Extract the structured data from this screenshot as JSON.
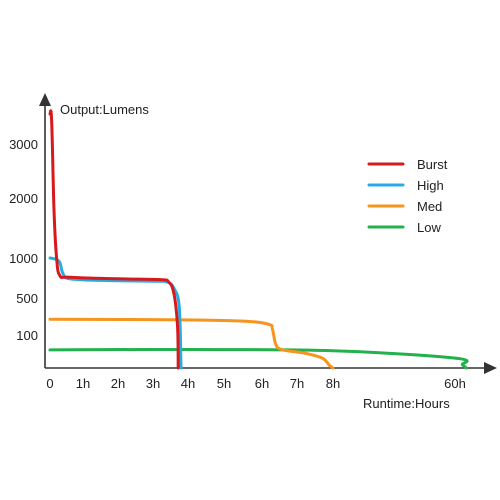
{
  "chart_data": {
    "type": "line",
    "xlabel": "Runtime:Hours",
    "ylabel": "Output:Lumens",
    "x_ticks": [
      {
        "label": "0",
        "value": 0
      },
      {
        "label": "1h",
        "value": 1
      },
      {
        "label": "2h",
        "value": 2
      },
      {
        "label": "3h",
        "value": 3
      },
      {
        "label": "4h",
        "value": 4
      },
      {
        "label": "5h",
        "value": 5
      },
      {
        "label": "6h",
        "value": 6
      },
      {
        "label": "7h",
        "value": 7
      },
      {
        "label": "8h",
        "value": 8
      },
      {
        "label": "60h",
        "value": 60
      }
    ],
    "y_ticks": [
      {
        "label": "100",
        "value": 100
      },
      {
        "label": "500",
        "value": 500
      },
      {
        "label": "1000",
        "value": 1000
      },
      {
        "label": "2000",
        "value": 2000
      },
      {
        "label": "3000",
        "value": 3000
      }
    ],
    "legend_position": "top-right",
    "grid": false,
    "series": [
      {
        "name": "Burst",
        "color": "#d7191c",
        "points": [
          [
            0,
            3500
          ],
          [
            0.05,
            3400
          ],
          [
            0.12,
            1800
          ],
          [
            0.2,
            1000
          ],
          [
            0.3,
            780
          ],
          [
            0.6,
            760
          ],
          [
            2,
            740
          ],
          [
            3.2,
            730
          ],
          [
            3.45,
            700
          ],
          [
            3.6,
            550
          ],
          [
            3.7,
            200
          ],
          [
            3.72,
            0
          ]
        ]
      },
      {
        "name": "High",
        "color": "#29abe2",
        "points": [
          [
            0,
            1000
          ],
          [
            0.2,
            980
          ],
          [
            0.3,
            940
          ],
          [
            0.4,
            800
          ],
          [
            0.6,
            740
          ],
          [
            1.5,
            720
          ],
          [
            3,
            710
          ],
          [
            3.4,
            700
          ],
          [
            3.6,
            620
          ],
          [
            3.75,
            400
          ],
          [
            3.8,
            0
          ]
        ]
      },
      {
        "name": "Med",
        "color": "#f7941d",
        "points": [
          [
            0,
            270
          ],
          [
            3.5,
            265
          ],
          [
            5.5,
            250
          ],
          [
            6.2,
            215
          ],
          [
            6.3,
            160
          ],
          [
            6.4,
            70
          ],
          [
            6.6,
            55
          ],
          [
            7.2,
            45
          ],
          [
            7.7,
            30
          ],
          [
            7.9,
            8
          ],
          [
            8,
            0
          ]
        ]
      },
      {
        "name": "Low",
        "color": "#22b14c",
        "points": [
          [
            0,
            55
          ],
          [
            4,
            56
          ],
          [
            8,
            52
          ],
          [
            60,
            30
          ],
          [
            61,
            10
          ],
          [
            61.5,
            0
          ]
        ]
      }
    ]
  }
}
